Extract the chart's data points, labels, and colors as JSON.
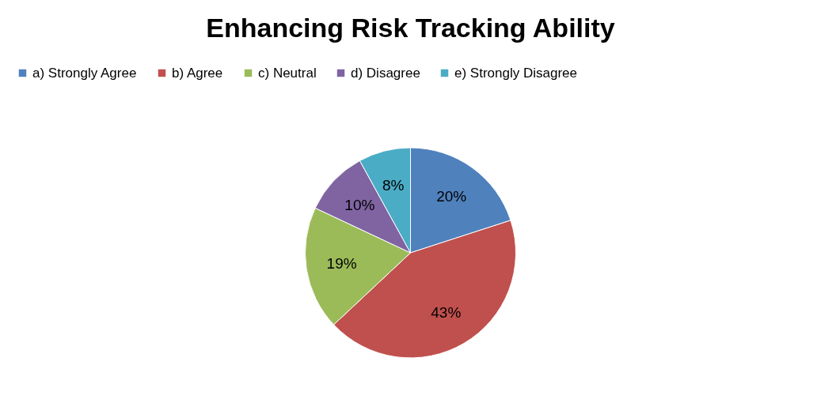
{
  "chart_data": {
    "type": "pie",
    "title": "Enhancing Risk Tracking Ability",
    "categories": [
      "a) Strongly Agree",
      "b) Agree",
      "c) Neutral",
      "d) Disagree",
      "e) Strongly Disagree"
    ],
    "values": [
      20,
      43,
      19,
      10,
      8
    ],
    "colors": [
      "#4f81bd",
      "#c0504d",
      "#9bbb59",
      "#8064a2",
      "#4bacc6"
    ],
    "value_labels": [
      "20%",
      "43%",
      "19%",
      "10%",
      "8%"
    ],
    "legend": "top"
  }
}
